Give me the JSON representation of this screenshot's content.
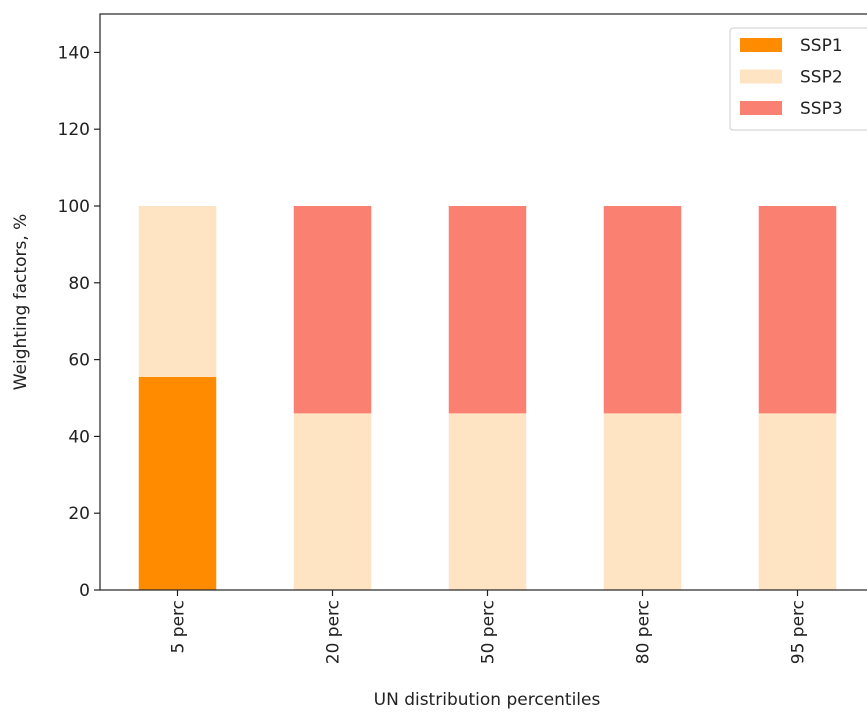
{
  "chart_data": {
    "type": "stacked_bar",
    "categories": [
      "5 perc",
      "20 perc",
      "50 perc",
      "80 perc",
      "95 perc"
    ],
    "series": [
      {
        "name": "SSP1",
        "color": "#ff8c00",
        "values": [
          55.5,
          0,
          0,
          0,
          0
        ]
      },
      {
        "name": "SSP2",
        "color": "#ffe4c4",
        "values": [
          44.5,
          46,
          46,
          46,
          46
        ]
      },
      {
        "name": "SSP3",
        "color": "#fa8072",
        "values": [
          0,
          54,
          54,
          54,
          54
        ]
      }
    ],
    "x_label": "UN distribution percentiles",
    "y_label": "Weighting factors, %",
    "ylim": [
      0,
      150
    ],
    "yticks": [
      0,
      20,
      40,
      60,
      80,
      100,
      120,
      140
    ],
    "legend": "upper right"
  }
}
